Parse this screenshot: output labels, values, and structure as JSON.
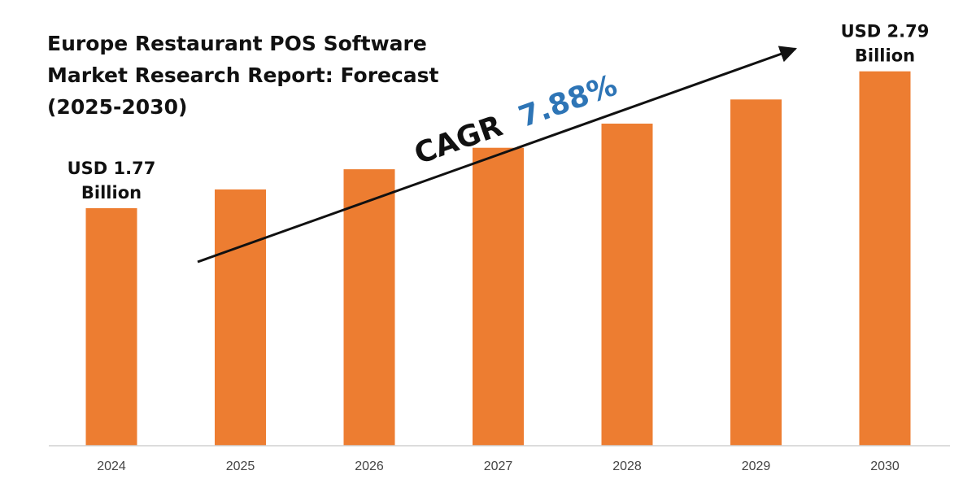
{
  "chart_data": {
    "type": "bar",
    "title_lines": [
      "Europe Restaurant POS Software",
      "Market Research Report: Forecast",
      "(2025-2030)"
    ],
    "categories": [
      "2024",
      "2025",
      "2026",
      "2027",
      "2028",
      "2029",
      "2030"
    ],
    "values": [
      1.77,
      1.91,
      2.06,
      2.22,
      2.4,
      2.58,
      2.79
    ],
    "ylim": [
      0,
      3.2
    ],
    "xlabel": "",
    "ylabel": "",
    "grid": false,
    "bar_color": "#ED7D31",
    "annotations": {
      "first": {
        "category": "2024",
        "line1": "USD 1.77",
        "line2": "Billion"
      },
      "last": {
        "category": "2030",
        "line1": "USD 2.79",
        "line2": "Billion"
      },
      "cagr": {
        "label": "CAGR",
        "value": "7.88%",
        "label_color": "#111111",
        "value_color": "#2E75B6"
      }
    }
  }
}
